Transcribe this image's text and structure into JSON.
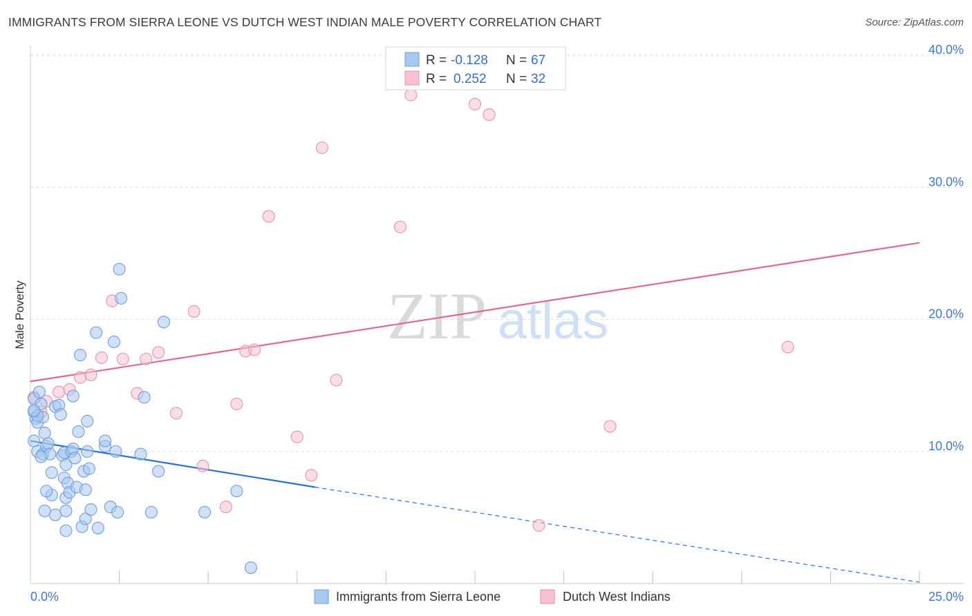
{
  "title": "IMMIGRANTS FROM SIERRA LEONE VS DUTCH WEST INDIAN MALE POVERTY CORRELATION CHART",
  "source": "Source: ZipAtlas.com",
  "watermark": {
    "zip": "ZIP",
    "atlas": "atlas"
  },
  "stats": [
    {
      "r_label": "R =",
      "r_value": "-0.128",
      "n_label": "N =",
      "n_value": "67",
      "color": "#a9c8f0",
      "border": "#6f9ee0"
    },
    {
      "r_label": "R =",
      "r_value": "0.252",
      "n_label": "N =",
      "n_value": "32",
      "color": "#f6c1d2",
      "border": "#e893ae"
    }
  ],
  "chart_data": {
    "type": "scatter",
    "xlabel": "",
    "ylabel": "Male Poverty",
    "xlim": [
      0,
      25
    ],
    "ylim": [
      0,
      40
    ],
    "x_tick_labels": [
      "0.0%",
      "25.0%"
    ],
    "y_ticks": [
      10,
      20,
      30,
      40
    ],
    "y_tick_labels": [
      "10.0%",
      "20.0%",
      "30.0%",
      "40.0%"
    ],
    "grid": true,
    "legend_position": "bottom",
    "series": [
      {
        "name": "Immigrants from Sierra Leone",
        "color": "#a9c8f0",
        "stroke": "#6f9ee0",
        "line_color": "#2a6fd6",
        "trend": {
          "x0": 0,
          "y0": 10.8,
          "x1": 8.0,
          "y1": 7.3,
          "dash_x1": 25.0,
          "dash_y1": 0.1
        },
        "points": [
          [
            0.1,
            14.0
          ],
          [
            0.1,
            13.0
          ],
          [
            0.15,
            12.5
          ],
          [
            0.2,
            12.2
          ],
          [
            0.25,
            14.5
          ],
          [
            0.3,
            13.6
          ],
          [
            0.35,
            12.6
          ],
          [
            0.1,
            10.8
          ],
          [
            0.2,
            10.0
          ],
          [
            0.35,
            9.8
          ],
          [
            0.4,
            11.4
          ],
          [
            0.45,
            10.4
          ],
          [
            0.5,
            10.6
          ],
          [
            0.55,
            9.8
          ],
          [
            0.6,
            8.4
          ],
          [
            0.7,
            13.4
          ],
          [
            0.8,
            13.5
          ],
          [
            0.85,
            12.8
          ],
          [
            0.9,
            9.7
          ],
          [
            0.95,
            8.0
          ],
          [
            0.95,
            9.9
          ],
          [
            1.0,
            6.5
          ],
          [
            1.0,
            5.5
          ],
          [
            1.0,
            9.0
          ],
          [
            1.05,
            7.6
          ],
          [
            1.1,
            6.9
          ],
          [
            1.15,
            10.0
          ],
          [
            1.2,
            10.2
          ],
          [
            1.2,
            14.2
          ],
          [
            1.25,
            9.5
          ],
          [
            1.3,
            7.3
          ],
          [
            1.35,
            11.5
          ],
          [
            1.4,
            17.3
          ],
          [
            1.45,
            4.3
          ],
          [
            1.5,
            8.5
          ],
          [
            1.55,
            7.1
          ],
          [
            1.55,
            4.9
          ],
          [
            1.6,
            12.3
          ],
          [
            1.6,
            10.0
          ],
          [
            1.65,
            8.7
          ],
          [
            1.7,
            5.6
          ],
          [
            1.85,
            19.0
          ],
          [
            1.9,
            4.2
          ],
          [
            2.1,
            10.4
          ],
          [
            2.1,
            10.8
          ],
          [
            2.25,
            5.8
          ],
          [
            2.35,
            18.3
          ],
          [
            2.4,
            10.0
          ],
          [
            2.45,
            5.4
          ],
          [
            2.5,
            23.8
          ],
          [
            2.55,
            21.6
          ],
          [
            3.1,
            9.8
          ],
          [
            3.2,
            14.1
          ],
          [
            3.4,
            5.4
          ],
          [
            3.6,
            8.5
          ],
          [
            3.75,
            19.8
          ],
          [
            4.9,
            5.4
          ],
          [
            5.8,
            7.0
          ],
          [
            6.2,
            1.2
          ],
          [
            0.6,
            6.7
          ],
          [
            0.7,
            5.2
          ],
          [
            0.45,
            7.0
          ],
          [
            0.4,
            5.5
          ],
          [
            0.3,
            9.6
          ],
          [
            1.0,
            4.0
          ],
          [
            0.2,
            12.7
          ],
          [
            0.1,
            13.1
          ]
        ]
      },
      {
        "name": "Dutch West Indians",
        "color": "#f6c1d2",
        "stroke": "#e893ae",
        "line_color": "#e0678f",
        "trend": {
          "x0": 0,
          "y0": 15.3,
          "x1": 25.0,
          "y1": 25.8
        },
        "points": [
          [
            0.1,
            14.1
          ],
          [
            0.3,
            13.0
          ],
          [
            0.45,
            13.8
          ],
          [
            0.8,
            14.5
          ],
          [
            1.1,
            14.7
          ],
          [
            1.4,
            15.6
          ],
          [
            1.7,
            15.8
          ],
          [
            2.0,
            17.1
          ],
          [
            2.3,
            21.4
          ],
          [
            2.6,
            17.0
          ],
          [
            3.0,
            14.4
          ],
          [
            3.25,
            17.0
          ],
          [
            3.6,
            17.5
          ],
          [
            4.1,
            12.9
          ],
          [
            4.6,
            20.6
          ],
          [
            4.85,
            8.9
          ],
          [
            5.5,
            5.8
          ],
          [
            5.8,
            13.6
          ],
          [
            6.05,
            17.6
          ],
          [
            6.3,
            17.7
          ],
          [
            6.7,
            27.8
          ],
          [
            7.5,
            11.1
          ],
          [
            7.9,
            8.2
          ],
          [
            8.2,
            33.0
          ],
          [
            8.6,
            15.4
          ],
          [
            10.4,
            27.0
          ],
          [
            10.7,
            37.0
          ],
          [
            12.5,
            36.3
          ],
          [
            12.9,
            35.5
          ],
          [
            14.3,
            4.4
          ],
          [
            16.3,
            11.9
          ],
          [
            21.3,
            17.9
          ]
        ]
      }
    ]
  }
}
